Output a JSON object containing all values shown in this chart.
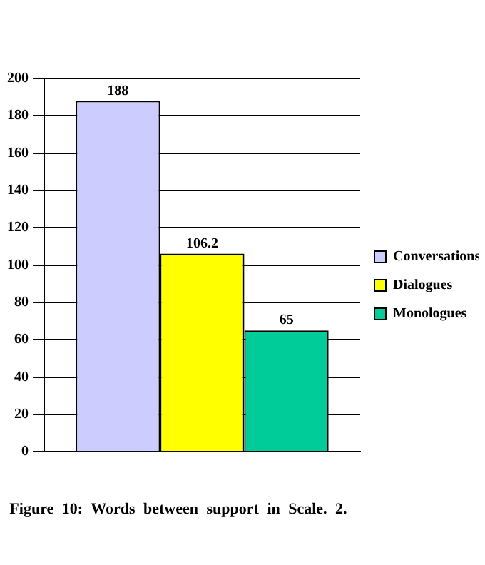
{
  "chart_data": {
    "type": "bar",
    "title": "Figure 10: Words between support in Scale. 2.",
    "categories": [
      null
    ],
    "series": [
      {
        "name": "Conversations",
        "color": "#ccccff",
        "values": [
          188
        ]
      },
      {
        "name": "Dialogues",
        "color": "#ffff00",
        "values": [
          106.2
        ]
      },
      {
        "name": "Monologues",
        "color": "#00cc99",
        "values": [
          65
        ]
      }
    ],
    "ylim": [
      0,
      200
    ],
    "yticks": [
      0,
      20,
      40,
      60,
      80,
      100,
      120,
      140,
      160,
      180,
      200
    ],
    "grid": "y",
    "legend": "right",
    "data_labels": true
  }
}
